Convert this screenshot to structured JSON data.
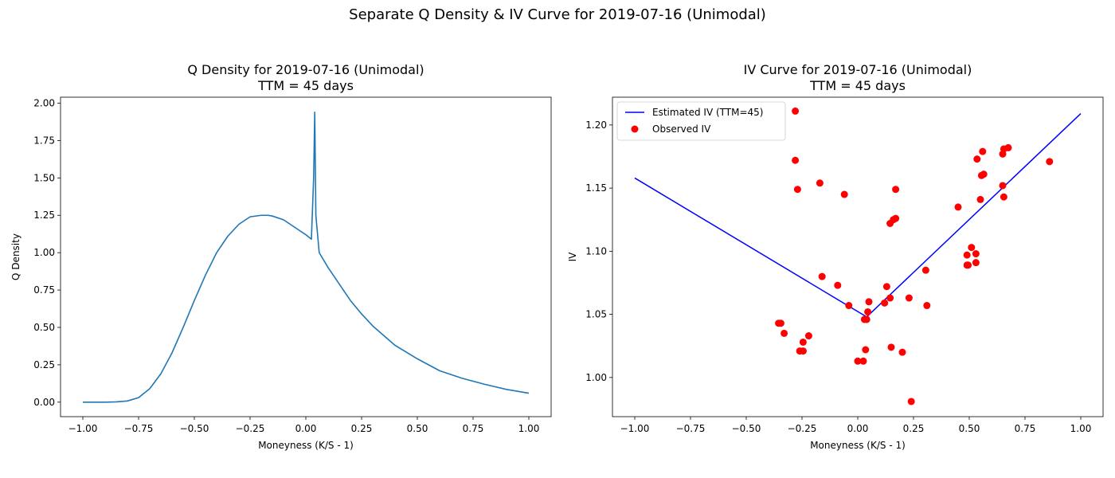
{
  "suptitle": "Separate Q Density & IV Curve for 2019-07-16 (Unimodal)",
  "chart_data": [
    {
      "type": "line",
      "title": "Q Density for 2019-07-16 (Unimodal)",
      "subtitle": "TTM = 45 days",
      "xlabel": "Moneyness (K/S - 1)",
      "ylabel": "Q Density",
      "xlim": [
        -1.1,
        1.1
      ],
      "ylim": [
        -0.097,
        2.04
      ],
      "xticks": [
        -1.0,
        -0.75,
        -0.5,
        -0.25,
        0.0,
        0.25,
        0.5,
        0.75,
        1.0
      ],
      "xtick_labels": [
        "−1.00",
        "−0.75",
        "−0.50",
        "−0.25",
        "0.00",
        "0.25",
        "0.50",
        "0.75",
        "1.00"
      ],
      "yticks": [
        0.0,
        0.25,
        0.5,
        0.75,
        1.0,
        1.25,
        1.5,
        1.75,
        2.0
      ],
      "ytick_labels": [
        "0.00",
        "0.25",
        "0.50",
        "0.75",
        "1.00",
        "1.25",
        "1.50",
        "1.75",
        "2.00"
      ],
      "grid": false,
      "color": "#1f77b4",
      "series": [
        {
          "x": [
            -1.0,
            -0.9,
            -0.85,
            -0.8,
            -0.75,
            -0.7,
            -0.65,
            -0.6,
            -0.55,
            -0.5,
            -0.45,
            -0.4,
            -0.35,
            -0.3,
            -0.25,
            -0.2,
            -0.17,
            -0.15,
            -0.1,
            -0.05,
            0.0,
            0.025,
            0.035,
            0.04,
            0.045,
            0.06,
            0.1,
            0.15,
            0.2,
            0.25,
            0.3,
            0.4,
            0.5,
            0.6,
            0.7,
            0.8,
            0.9,
            1.0
          ],
          "y": [
            0.0,
            0.0,
            0.002,
            0.008,
            0.03,
            0.09,
            0.19,
            0.33,
            0.5,
            0.68,
            0.85,
            1.0,
            1.11,
            1.19,
            1.24,
            1.25,
            1.25,
            1.245,
            1.22,
            1.17,
            1.12,
            1.09,
            1.5,
            1.94,
            1.25,
            1.0,
            0.9,
            0.79,
            0.68,
            0.59,
            0.51,
            0.38,
            0.29,
            0.21,
            0.16,
            0.12,
            0.085,
            0.06
          ]
        }
      ]
    },
    {
      "type": "scatter",
      "title": "IV Curve for 2019-07-16 (Unimodal)",
      "subtitle": "TTM = 45 days",
      "xlabel": "Moneyness (K/S - 1)",
      "ylabel": "IV",
      "xlim": [
        -1.1,
        1.1
      ],
      "ylim": [
        0.969,
        1.222
      ],
      "xticks": [
        -1.0,
        -0.75,
        -0.5,
        -0.25,
        0.0,
        0.25,
        0.5,
        0.75,
        1.0
      ],
      "xtick_labels": [
        "−1.00",
        "−0.75",
        "−0.50",
        "−0.25",
        "0.00",
        "0.25",
        "0.50",
        "0.75",
        "1.00"
      ],
      "yticks": [
        1.0,
        1.05,
        1.1,
        1.15,
        1.2
      ],
      "ytick_labels": [
        "1.00",
        "1.05",
        "1.10",
        "1.15",
        "1.20"
      ],
      "grid": false,
      "legend_position": "top-left",
      "series": [
        {
          "name": "Estimated IV (TTM=45)",
          "kind": "line",
          "color": "#0000ff",
          "x": [
            -1.0,
            0.04,
            1.0
          ],
          "y": [
            1.158,
            1.048,
            1.209
          ]
        },
        {
          "name": "Observed IV",
          "kind": "scatter",
          "color": "#ff0000",
          "x": [
            -0.28,
            -0.28,
            -0.27,
            -0.17,
            -0.06,
            0.17,
            0.17,
            0.16,
            0.145,
            0.45,
            0.535,
            0.56,
            0.555,
            0.565,
            0.55,
            0.65,
            0.655,
            0.675,
            0.655,
            0.65,
            0.86,
            -0.16,
            -0.09,
            -0.04,
            0.13,
            0.145,
            0.05,
            0.045,
            0.03,
            0.04,
            0.12,
            0.23,
            0.305,
            0.31,
            0.51,
            0.49,
            0.53,
            0.53,
            0.49,
            0.495,
            -0.355,
            -0.345,
            -0.33,
            -0.22,
            -0.245,
            -0.26,
            -0.245,
            0.035,
            0.15,
            0.2,
            0.0,
            0.025,
            0.24
          ],
          "y": [
            1.211,
            1.172,
            1.149,
            1.154,
            1.145,
            1.149,
            1.126,
            1.125,
            1.122,
            1.135,
            1.173,
            1.179,
            1.16,
            1.161,
            1.141,
            1.177,
            1.181,
            1.182,
            1.143,
            1.152,
            1.171,
            1.08,
            1.073,
            1.057,
            1.072,
            1.063,
            1.06,
            1.052,
            1.046,
            1.046,
            1.059,
            1.063,
            1.085,
            1.057,
            1.103,
            1.097,
            1.098,
            1.091,
            1.089,
            1.089,
            1.043,
            1.043,
            1.035,
            1.033,
            1.028,
            1.021,
            1.021,
            1.022,
            1.024,
            1.02,
            1.013,
            1.013,
            0.981
          ]
        }
      ]
    }
  ]
}
